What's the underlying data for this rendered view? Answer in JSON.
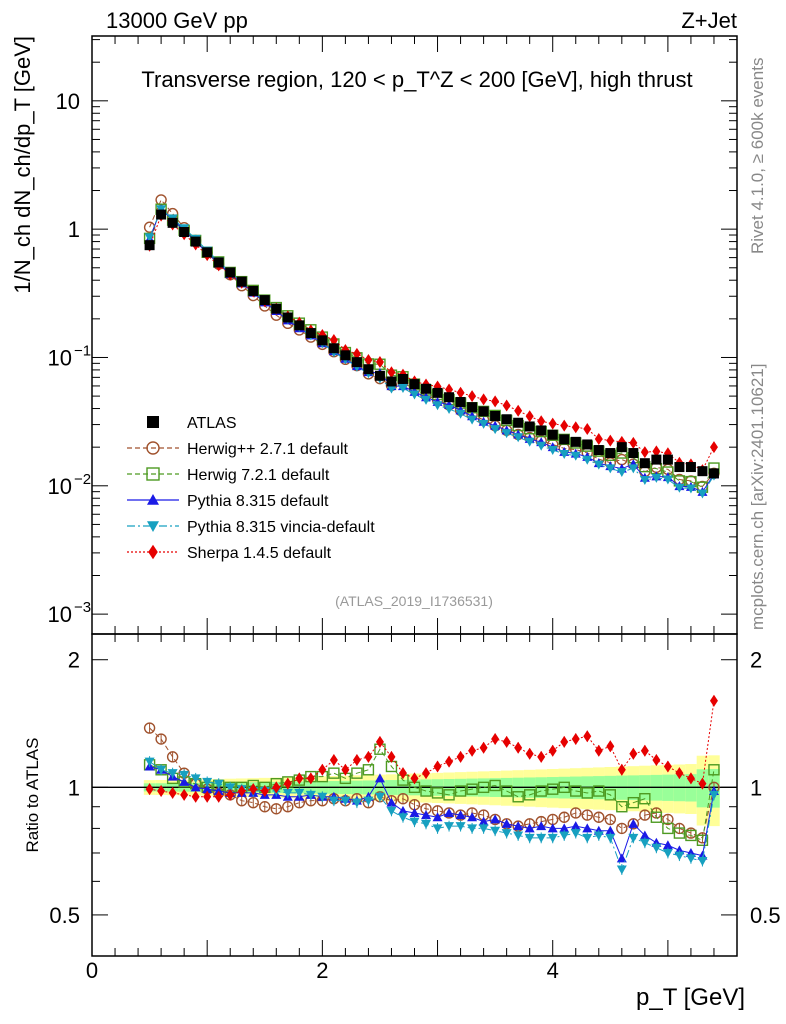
{
  "header": {
    "beam": "13000 GeV pp",
    "process": "Z+Jet",
    "rivet": "Rivet 4.1.0, ≥ 600k events",
    "mcplots": "mcplots.cern.ch [arXiv:2401.10621]",
    "analysis": "(ATLAS_2019_I1736531)"
  },
  "chart_data": {
    "type": "scatter",
    "title": "Transverse region, 120 < p_T^Z < 200 [GeV], high thrust",
    "xlabel": "p_T [GeV]",
    "ylabel": "1/N_ch dN_ch/dp_T [GeV]",
    "ratio_ylabel": "Ratio to ATLAS",
    "xlim": [
      0,
      5.6
    ],
    "ylim": [
      0.0007,
      32
    ],
    "ratio_ylim": [
      0.4,
      2.3
    ],
    "x_ticks": [
      "0",
      "2",
      "4"
    ],
    "y_ticks": [
      "10^-3",
      "10^-2",
      "10^-1",
      "1",
      "10"
    ],
    "ratio_ticks": [
      "0.5",
      "1",
      "2"
    ],
    "x": [
      0.5,
      0.6,
      0.7,
      0.8,
      0.9,
      1.0,
      1.1,
      1.2,
      1.3,
      1.4,
      1.5,
      1.6,
      1.7,
      1.8,
      1.9,
      2.0,
      2.1,
      2.2,
      2.3,
      2.4,
      2.5,
      2.6,
      2.7,
      2.8,
      2.9,
      3.0,
      3.1,
      3.2,
      3.3,
      3.4,
      3.5,
      3.6,
      3.7,
      3.8,
      3.9,
      4.0,
      4.1,
      4.2,
      4.3,
      4.4,
      4.5,
      4.6,
      4.7,
      4.8,
      4.9,
      5.0,
      5.1,
      5.2,
      5.3,
      5.4
    ],
    "atlas": [
      0.75,
      1.3,
      1.12,
      0.95,
      0.8,
      0.66,
      0.55,
      0.46,
      0.39,
      0.33,
      0.28,
      0.24,
      0.205,
      0.178,
      0.155,
      0.136,
      0.118,
      0.104,
      0.092,
      0.081,
      0.072,
      0.065,
      0.068,
      0.062,
      0.057,
      0.053,
      0.049,
      0.045,
      0.041,
      0.038,
      0.035,
      0.033,
      0.031,
      0.029,
      0.027,
      0.025,
      0.023,
      0.022,
      0.021,
      0.019,
      0.018,
      0.02,
      0.018,
      0.015,
      0.016,
      0.016,
      0.014,
      0.014,
      0.013,
      0.0125
    ],
    "series": [
      {
        "name": "ATLAS",
        "color": "#000000",
        "marker": "square-filled"
      },
      {
        "name": "Herwig++ 2.7.1 default",
        "color": "#a0522d",
        "marker": "circle-open",
        "ratio": [
          1.38,
          1.3,
          1.18,
          1.08,
          1.02,
          0.99,
          0.97,
          0.96,
          0.93,
          0.92,
          0.9,
          0.89,
          0.9,
          0.92,
          0.93,
          0.93,
          0.94,
          0.93,
          0.94,
          0.92,
          0.95,
          0.93,
          0.94,
          0.91,
          0.89,
          0.88,
          0.87,
          0.86,
          0.87,
          0.86,
          0.84,
          0.82,
          0.81,
          0.82,
          0.83,
          0.84,
          0.85,
          0.87,
          0.86,
          0.85,
          0.84,
          0.8,
          0.82,
          0.86,
          0.87,
          0.84,
          0.8,
          0.78,
          0.76,
          1.0
        ]
      },
      {
        "name": "Herwig 7.2.1 default",
        "color": "#4d9a21",
        "marker": "square-open",
        "ratio": [
          1.13,
          1.1,
          1.05,
          1.03,
          1.02,
          1.0,
          1.01,
          1.0,
          1.0,
          1.01,
          1.0,
          1.02,
          1.03,
          1.04,
          1.06,
          1.06,
          1.08,
          1.05,
          1.08,
          1.1,
          1.23,
          1.12,
          1.04,
          1.0,
          0.98,
          0.97,
          0.96,
          0.98,
          0.99,
          1.0,
          1.01,
          0.98,
          0.95,
          0.96,
          0.98,
          0.99,
          1.0,
          0.98,
          0.97,
          0.98,
          0.96,
          0.9,
          0.92,
          0.94,
          0.85,
          0.8,
          0.78,
          0.77,
          0.75,
          1.1
        ]
      },
      {
        "name": "Pythia 8.315 default",
        "color": "#1a1ae6",
        "marker": "triangle-up-filled",
        "ratio": [
          1.12,
          1.1,
          1.06,
          1.03,
          1.0,
          0.99,
          0.98,
          0.97,
          0.97,
          0.97,
          0.96,
          0.96,
          0.95,
          0.95,
          0.96,
          0.95,
          0.95,
          0.94,
          0.93,
          0.95,
          1.05,
          0.92,
          0.88,
          0.87,
          0.86,
          0.85,
          0.87,
          0.86,
          0.85,
          0.83,
          0.84,
          0.82,
          0.81,
          0.8,
          0.81,
          0.8,
          0.8,
          0.81,
          0.8,
          0.79,
          0.79,
          0.68,
          0.82,
          0.77,
          0.74,
          0.73,
          0.71,
          0.7,
          0.69,
          0.98
        ]
      },
      {
        "name": "Pythia 8.315 vincia-default",
        "color": "#17a0c0",
        "marker": "triangle-down-filled",
        "ratio": [
          1.15,
          1.1,
          1.08,
          1.07,
          1.05,
          1.03,
          1.02,
          1.0,
          0.99,
          0.98,
          0.98,
          0.98,
          0.97,
          0.97,
          0.96,
          0.95,
          0.93,
          0.93,
          0.92,
          0.93,
          0.95,
          0.88,
          0.85,
          0.83,
          0.82,
          0.8,
          0.81,
          0.81,
          0.8,
          0.8,
          0.79,
          0.78,
          0.77,
          0.76,
          0.76,
          0.76,
          0.77,
          0.78,
          0.76,
          0.77,
          0.76,
          0.64,
          0.76,
          0.74,
          0.72,
          0.7,
          0.69,
          0.68,
          0.67,
          0.96
        ]
      },
      {
        "name": "Sherpa 1.4.5 default",
        "color": "#e60000",
        "marker": "diamond-filled",
        "ratio": [
          0.99,
          0.98,
          0.97,
          0.96,
          0.95,
          0.95,
          0.95,
          0.96,
          0.98,
          0.99,
          0.98,
          1.0,
          1.02,
          1.05,
          1.05,
          1.1,
          1.16,
          1.1,
          1.16,
          1.18,
          1.28,
          1.18,
          1.08,
          1.05,
          1.08,
          1.12,
          1.15,
          1.18,
          1.22,
          1.24,
          1.3,
          1.28,
          1.24,
          1.2,
          1.18,
          1.22,
          1.28,
          1.3,
          1.32,
          1.22,
          1.25,
          1.1,
          1.2,
          1.22,
          1.16,
          1.12,
          1.08,
          1.05,
          1.02,
          1.6
        ]
      }
    ]
  }
}
